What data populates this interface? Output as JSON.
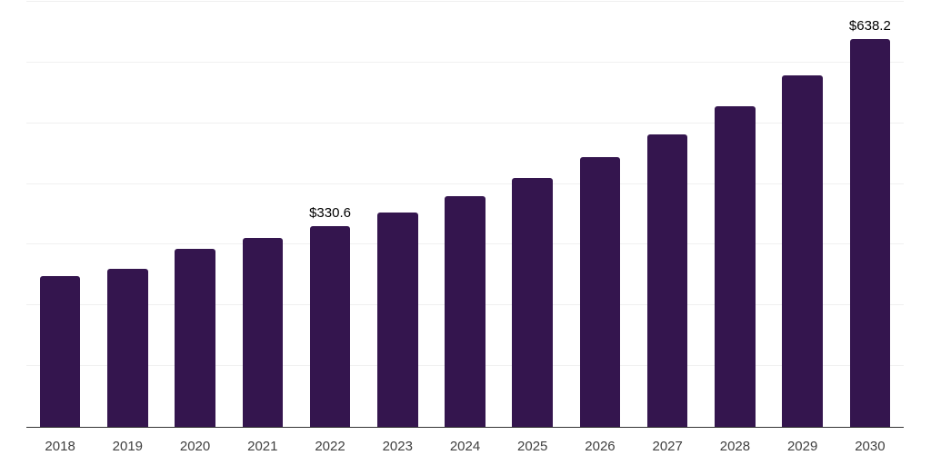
{
  "chart_data": {
    "type": "bar",
    "title": "",
    "xlabel": "",
    "ylabel": "",
    "categories": [
      "2018",
      "2019",
      "2020",
      "2021",
      "2022",
      "2023",
      "2024",
      "2025",
      "2026",
      "2027",
      "2028",
      "2029",
      "2030"
    ],
    "values": [
      249.0,
      259.9,
      293.7,
      311.0,
      330.6,
      353.3,
      379.5,
      410.4,
      444.2,
      482.3,
      527.6,
      579.2,
      638.2
    ],
    "value_labels": [
      "",
      "",
      "",
      "",
      "$330.6",
      "",
      "",
      "",
      "",
      "",
      "",
      "",
      "$638.2"
    ],
    "ylim": [
      0,
      700
    ],
    "gridline_interval": 100,
    "grid": "horizontal only, no y-axis tick labels",
    "legend_position": "none",
    "bar_color": "#34154e",
    "gridline_color": "#f0f0f0",
    "axis_line_color": "#333333",
    "tick_label_color": "#404040",
    "value_label_color": "#000000",
    "background_color": "#ffffff"
  }
}
